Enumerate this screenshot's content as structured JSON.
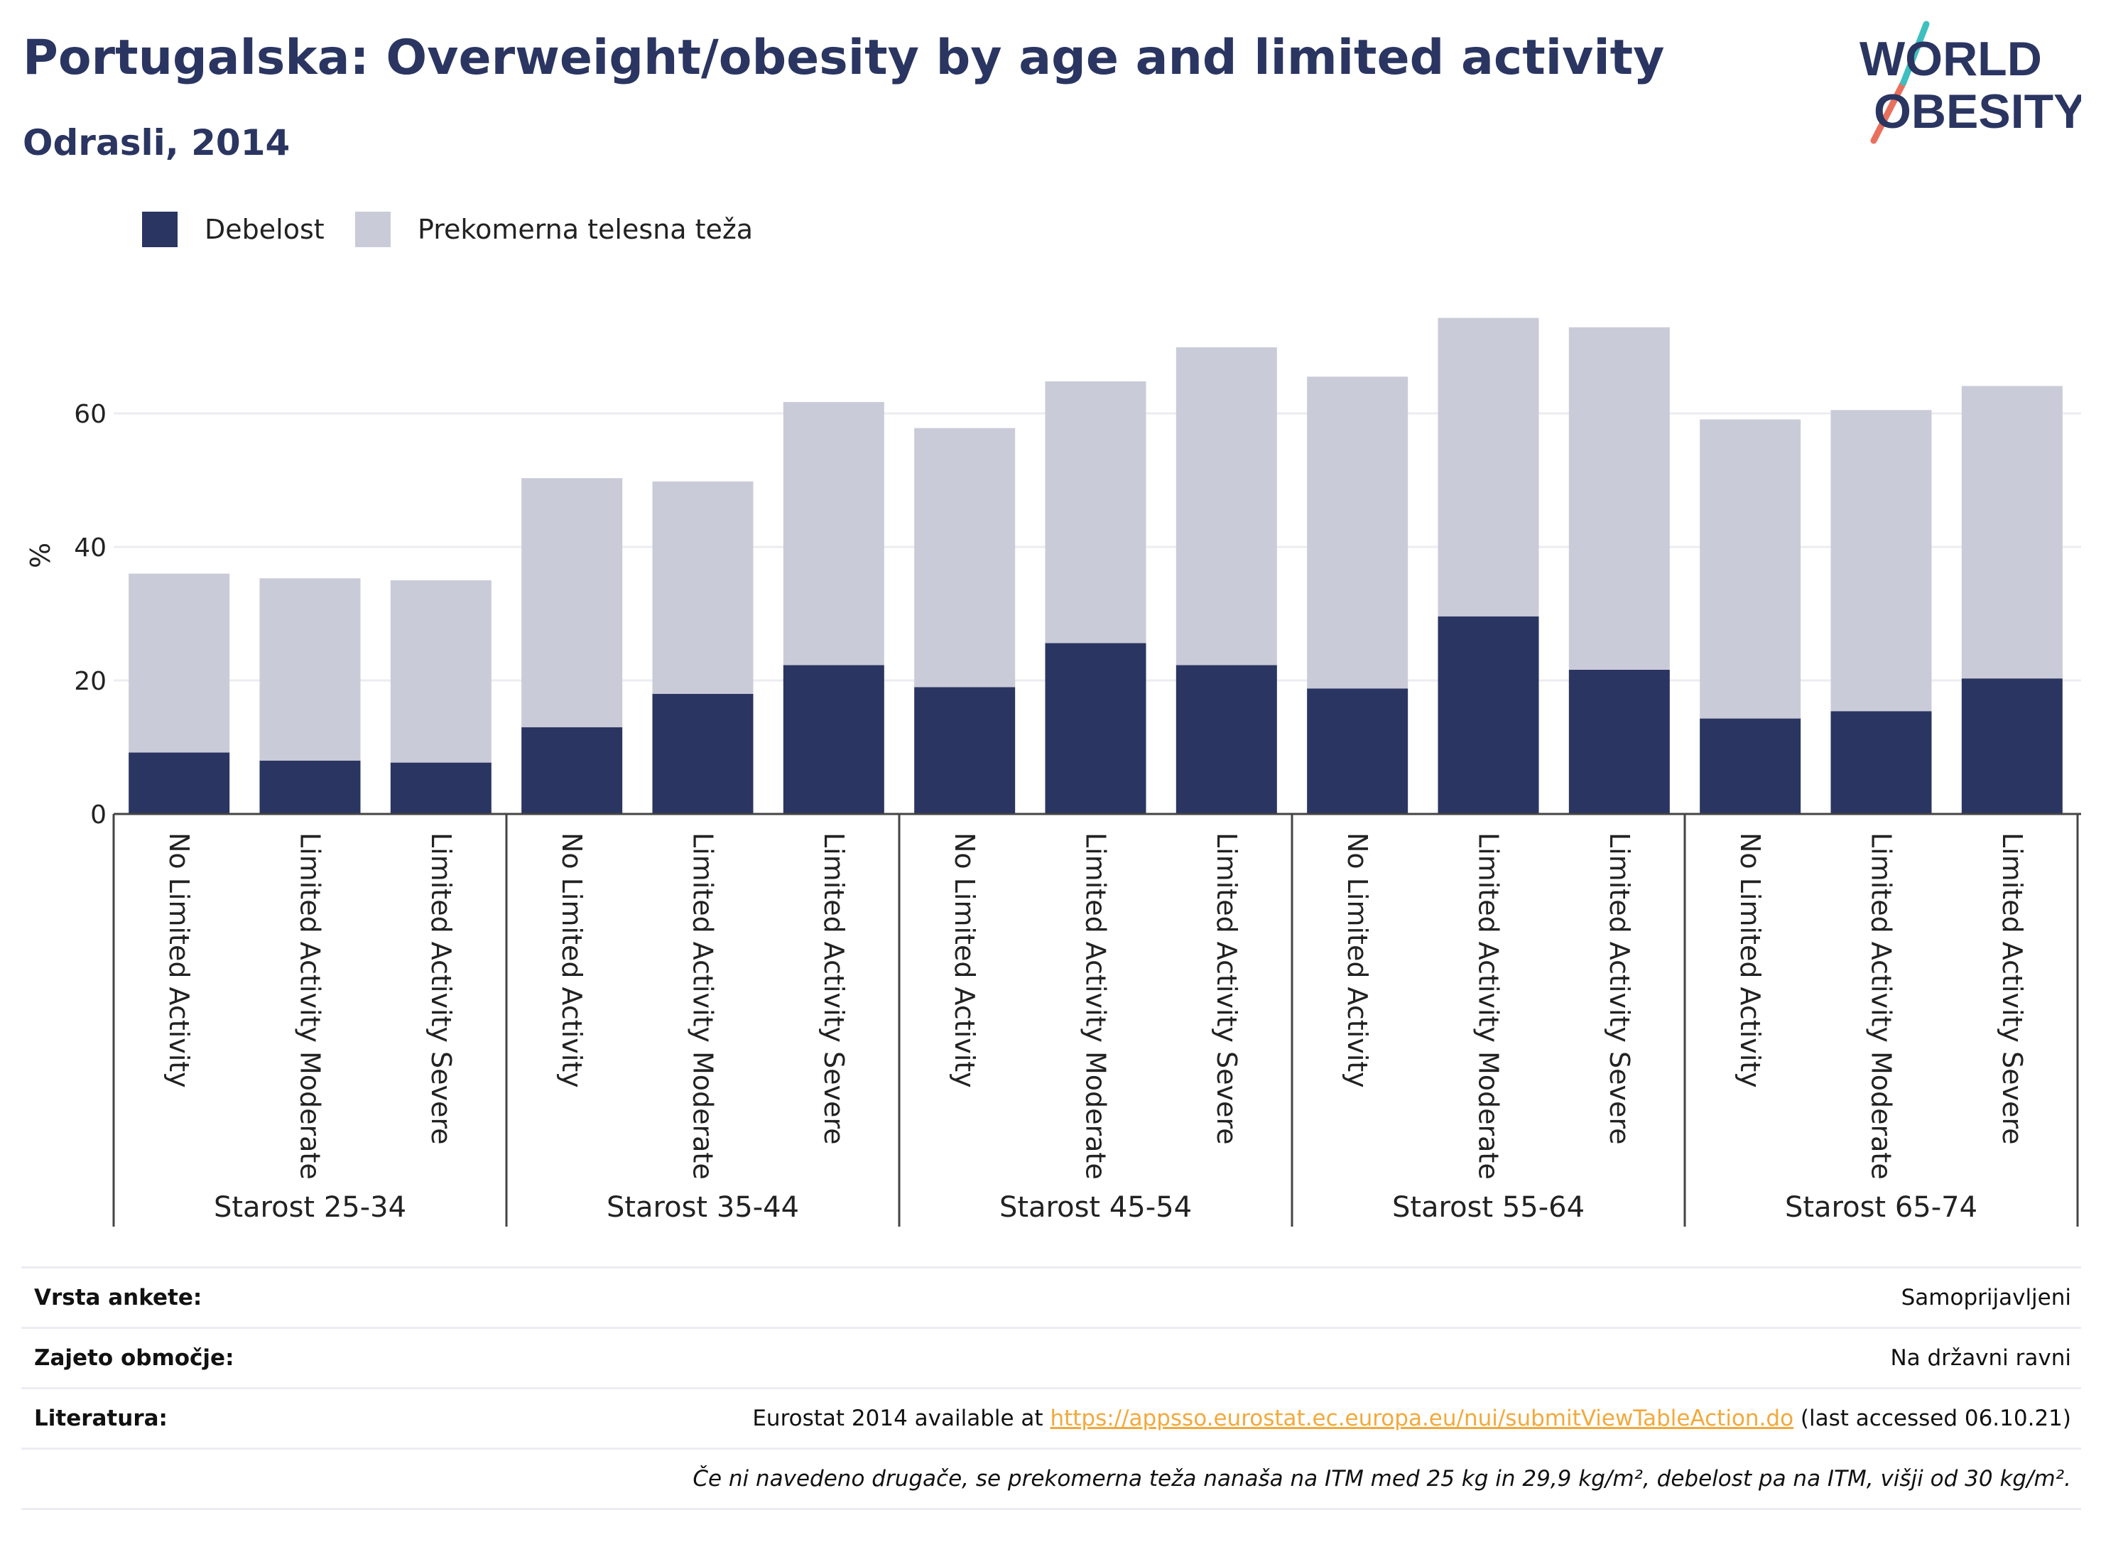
{
  "header": {
    "title": "Portugalska: Overweight/obesity by age and limited activity",
    "subtitle": "Odrasli, 2014"
  },
  "logo": {
    "line1": "WORLD",
    "line2": "OBESITY",
    "colors": {
      "text": "#2a3561",
      "slash_teal": "#3fbfbf",
      "slash_coral": "#e8715e"
    }
  },
  "legend": [
    {
      "label": "Debelost",
      "color": "#2a3561"
    },
    {
      "label": "Prekomerna telesna teža",
      "color": "#cacbd8"
    }
  ],
  "chart_data": {
    "type": "bar",
    "stacked": true,
    "ylabel": "%",
    "ylim": [
      0,
      76
    ],
    "yticks": [
      0,
      20,
      40,
      60
    ],
    "grid": true,
    "groups": [
      "Starost 25-34",
      "Starost 35-44",
      "Starost 45-54",
      "Starost 55-64",
      "Starost 65-74"
    ],
    "subcategories": [
      "No Limited Activity",
      "Limited Activity Moderate",
      "Limited Activity Severe"
    ],
    "categories": [
      "No Limited Activity",
      "Limited Activity Moderate",
      "Limited Activity Severe",
      "No Limited Activity",
      "Limited Activity Moderate",
      "Limited Activity Severe",
      "No Limited Activity",
      "Limited Activity Moderate",
      "Limited Activity Severe",
      "No Limited Activity",
      "Limited Activity Moderate",
      "Limited Activity Severe",
      "No Limited Activity",
      "Limited Activity Moderate",
      "Limited Activity Severe"
    ],
    "series": [
      {
        "name": "Debelost",
        "color": "#2a3561",
        "values": [
          9.2,
          8.0,
          7.7,
          13.0,
          18.0,
          22.3,
          19.0,
          25.6,
          22.3,
          18.8,
          29.6,
          21.6,
          14.3,
          15.4,
          20.3
        ]
      },
      {
        "name": "Prekomerna telesna teža",
        "color": "#cacbd8",
        "values": [
          26.8,
          27.3,
          27.3,
          37.3,
          31.8,
          39.4,
          38.8,
          39.2,
          47.6,
          46.7,
          44.7,
          51.3,
          44.8,
          45.1,
          43.8
        ]
      }
    ]
  },
  "info": {
    "survey_type_label": "Vrsta ankete:",
    "survey_type_value": "Samoprijavljeni",
    "coverage_label": "Zajeto območje:",
    "coverage_value": "Na državni ravni",
    "reference_label": "Literatura:",
    "reference_prefix": "Eurostat 2014 available at ",
    "reference_link": "https://appsso.eurostat.ec.europa.eu/nui/submitViewTableAction.do",
    "reference_suffix": " (last accessed 06.10.21)",
    "note": "Če ni navedeno drugače, se prekomerna teža nanaša na ITM med 25 kg in 29,9 kg/m², debelost pa na ITM, višji od 30 kg/m²."
  }
}
